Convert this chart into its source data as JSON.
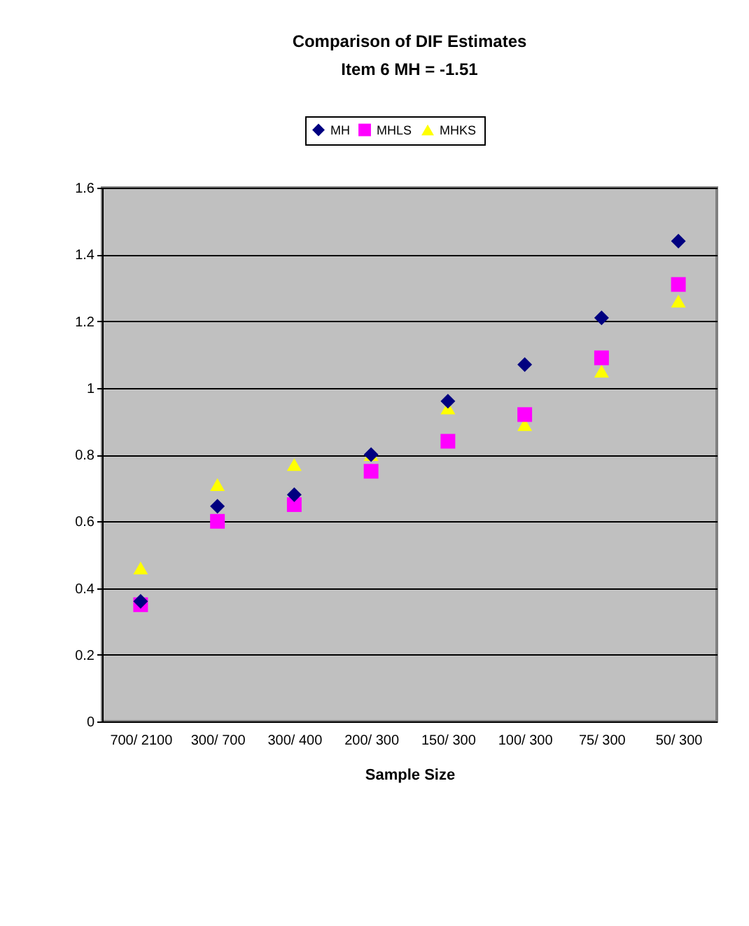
{
  "chart_data": {
    "type": "scatter",
    "title": "Comparison of DIF Estimates",
    "subtitle": "Item 6   MH = -1.51",
    "xlabel": "Sample Size",
    "categories": [
      "700/ 2100",
      "300/ 700",
      "300/ 400",
      "200/ 300",
      "150/ 300",
      "100/ 300",
      "75/ 300",
      "50/ 300"
    ],
    "series": [
      {
        "name": "MH",
        "color": "#000080",
        "marker": "diamond",
        "values": [
          0.36,
          0.645,
          0.68,
          0.8,
          0.96,
          1.07,
          1.21,
          1.44
        ]
      },
      {
        "name": "MHLS",
        "color": "#ff00ff",
        "marker": "square",
        "values": [
          0.35,
          0.6,
          0.65,
          0.75,
          0.84,
          0.92,
          1.09,
          1.31
        ]
      },
      {
        "name": "MHKS",
        "color": "#ffff00",
        "marker": "triangle",
        "values": [
          0.46,
          0.71,
          0.77,
          0.8,
          0.94,
          0.89,
          1.05,
          1.26
        ]
      }
    ],
    "ylim": [
      0,
      1.6
    ],
    "yticks": [
      0,
      0.2,
      0.4,
      0.6,
      0.8,
      1,
      1.2,
      1.4,
      1.6
    ],
    "grid": "y",
    "legend": "top"
  }
}
